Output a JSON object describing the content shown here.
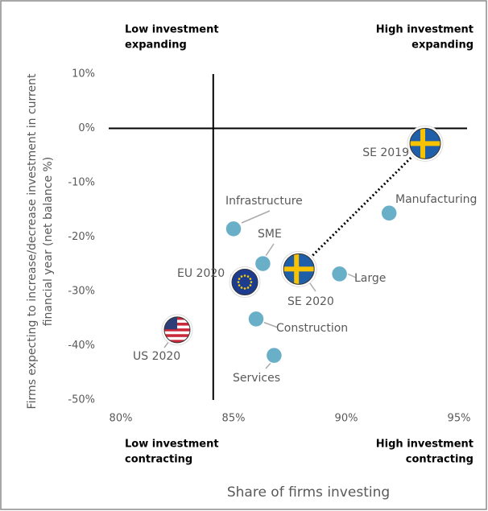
{
  "chart_data": {
    "type": "scatter",
    "x_label": "Share of firms investing",
    "y_label": [
      "Firms expecting to increase/decrease investment in current",
      "financial year  (net balance %)"
    ],
    "quadrants": {
      "top_left": [
        "Low investment",
        "expanding"
      ],
      "top_right": [
        "High investment",
        "expanding"
      ],
      "bottom_left": [
        "Low investment",
        "contracting"
      ],
      "bottom_right": [
        "High investment",
        "contracting"
      ]
    },
    "xlim": [
      80,
      95
    ],
    "ylim": [
      -50,
      10
    ],
    "xticks": [
      {
        "value": 80,
        "label": "80%"
      },
      {
        "value": 85,
        "label": "85%"
      },
      {
        "value": 90,
        "label": "90%"
      },
      {
        "value": 95,
        "label": "95%"
      }
    ],
    "yticks": [
      {
        "value": -50,
        "label": "-50%"
      },
      {
        "value": -40,
        "label": "-40%"
      },
      {
        "value": -30,
        "label": "-30%"
      },
      {
        "value": -20,
        "label": "-20%"
      },
      {
        "value": -10,
        "label": "-10%"
      },
      {
        "value": 0,
        "label": "0%"
      },
      {
        "value": 10,
        "label": "10%"
      }
    ],
    "reference_lines": {
      "x": 84.1,
      "y": 0
    },
    "color": "#6aafc8",
    "points": [
      {
        "label": "SE 2019",
        "x": 93.5,
        "y": -2.8,
        "flag": "SE"
      },
      {
        "label": "Manufacturing",
        "x": 91.9,
        "y": -15.6
      },
      {
        "label": "Infrastructure",
        "x": 85.0,
        "y": -18.5
      },
      {
        "label": "SME",
        "x": 86.3,
        "y": -24.9
      },
      {
        "label": "SE 2020",
        "x": 87.9,
        "y": -25.9,
        "flag": "SE"
      },
      {
        "label": "Large",
        "x": 89.7,
        "y": -26.8
      },
      {
        "label": "EU 2020",
        "x": 85.5,
        "y": -28.3,
        "flag": "EU"
      },
      {
        "label": "Construction",
        "x": 86.0,
        "y": -35.1
      },
      {
        "label": "US 2020",
        "x": 82.5,
        "y": -37.1,
        "flag": "US"
      },
      {
        "label": "Services",
        "x": 86.8,
        "y": -41.8
      }
    ]
  }
}
